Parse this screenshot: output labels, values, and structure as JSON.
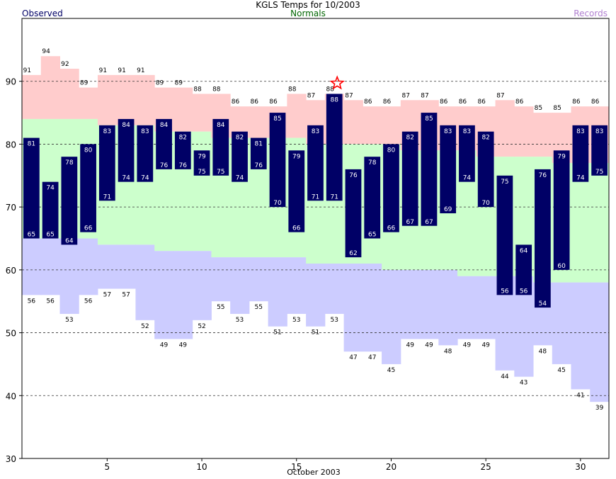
{
  "chart_data": {
    "type": "bar",
    "title": "KGLS Temps for 10/2003",
    "xlabel": "October 2003",
    "legend": {
      "observed": "Observed",
      "normals": "Normals",
      "records": "Records"
    },
    "ylim": [
      30,
      100
    ],
    "yticks": [
      30,
      40,
      50,
      60,
      70,
      80,
      90
    ],
    "xticks": [
      5,
      10,
      15,
      20,
      25,
      30
    ],
    "grid": "dashed horizontal",
    "colors": {
      "observed": "#000066",
      "normal": "#ccffcc",
      "record_high": "#ffcccc",
      "record_low": "#ccccff",
      "star": "#ff0000"
    },
    "days": [
      1,
      2,
      3,
      4,
      5,
      6,
      7,
      8,
      9,
      10,
      11,
      12,
      13,
      14,
      15,
      16,
      17,
      18,
      19,
      20,
      21,
      22,
      23,
      24,
      25,
      26,
      27,
      28,
      29,
      30,
      31
    ],
    "series": [
      {
        "name": "Observed High",
        "values": [
          81,
          74,
          78,
          80,
          83,
          84,
          83,
          84,
          82,
          79,
          84,
          82,
          81,
          85,
          79,
          83,
          88,
          76,
          78,
          80,
          82,
          85,
          83,
          83,
          82,
          75,
          64,
          76,
          79,
          83,
          83
        ]
      },
      {
        "name": "Observed Low",
        "values": [
          65,
          65,
          64,
          66,
          71,
          74,
          74,
          76,
          76,
          75,
          75,
          74,
          76,
          70,
          66,
          71,
          71,
          62,
          65,
          66,
          67,
          67,
          69,
          74,
          70,
          56,
          56,
          54,
          60,
          74,
          75
        ]
      },
      {
        "name": "Record High",
        "values": [
          91,
          94,
          92,
          89,
          91,
          91,
          91,
          89,
          89,
          88,
          88,
          86,
          86,
          86,
          88,
          87,
          88,
          87,
          86,
          86,
          87,
          87,
          86,
          86,
          86,
          87,
          86,
          85,
          85,
          86,
          86
        ]
      },
      {
        "name": "Record Low",
        "values": [
          56,
          56,
          53,
          56,
          57,
          57,
          52,
          49,
          49,
          52,
          55,
          53,
          55,
          51,
          53,
          51,
          53,
          47,
          47,
          45,
          49,
          49,
          48,
          49,
          49,
          44,
          43,
          48,
          45,
          41,
          39
        ]
      }
    ],
    "normal_high": [
      84,
      84,
      84,
      84,
      83,
      83,
      83,
      82,
      82,
      82,
      81,
      81,
      81,
      81,
      81,
      80,
      80,
      80,
      80,
      80,
      79,
      79,
      79,
      79,
      78,
      78,
      78,
      78,
      77,
      77,
      77
    ],
    "normal_low": [
      65,
      65,
      65,
      65,
      64,
      64,
      64,
      63,
      63,
      63,
      62,
      62,
      62,
      62,
      62,
      61,
      61,
      61,
      61,
      60,
      60,
      60,
      60,
      59,
      59,
      59,
      59,
      58,
      58,
      58,
      58
    ],
    "record_set_day": 17
  }
}
